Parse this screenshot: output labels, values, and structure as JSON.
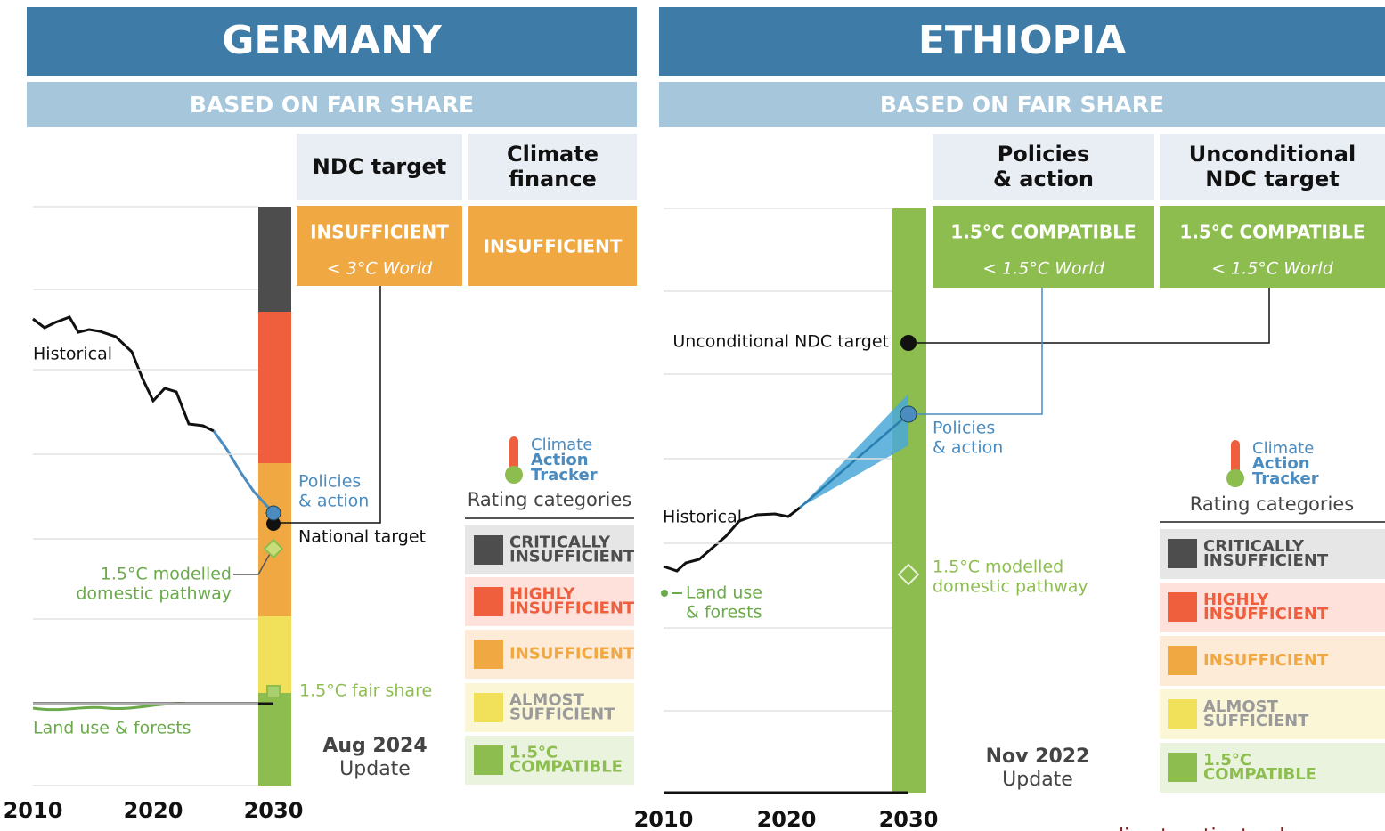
{
  "panels": [
    {
      "country": "GERMANY",
      "basis": "BASED ON FAIR SHARE",
      "columns": [
        {
          "header": [
            "NDC target"
          ],
          "rating": "INSUFFICIENT",
          "world": "< 3°C World"
        },
        {
          "header": [
            "Climate",
            "finance"
          ],
          "rating": "INSUFFICIENT"
        }
      ],
      "labels": {
        "historical": "Historical",
        "policies": [
          "Policies",
          "& action"
        ],
        "target": "National target",
        "pathway": [
          "1.5°C modelled",
          "domestic pathway"
        ],
        "fair_share": "1.5°C fair share",
        "land_use": [
          "Land use & forests"
        ]
      },
      "update": [
        "Aug 2024",
        "Update"
      ],
      "years": [
        "2010",
        "2020",
        "2030"
      ],
      "legend": {
        "logo": [
          "Climate",
          "Action",
          "Tracker"
        ],
        "title": "Rating categories",
        "categories": [
          [
            "CRITICALLY",
            "INSUFFICIENT"
          ],
          [
            "HIGHLY",
            "INSUFFICIENT"
          ],
          [
            "INSUFFICIENT"
          ],
          [
            "ALMOST",
            "SUFFICIENT"
          ],
          [
            "1.5°C",
            "COMPATIBLE"
          ]
        ]
      }
    },
    {
      "country": "ETHIOPIA",
      "basis": "BASED ON FAIR SHARE",
      "columns": [
        {
          "header": [
            "Policies",
            "& action"
          ],
          "rating": "1.5°C COMPATIBLE",
          "world": "< 1.5°C World"
        },
        {
          "header": [
            "Unconditional",
            "NDC target"
          ],
          "rating": "1.5°C COMPATIBLE",
          "world": "< 1.5°C World"
        }
      ],
      "labels": {
        "historical": "Historical",
        "policies": [
          "Policies",
          "& action"
        ],
        "target": "Unconditional NDC target",
        "pathway": [
          "1.5°C modelled",
          "domestic pathway"
        ],
        "land_use": [
          "Land use",
          "& forests"
        ]
      },
      "update": [
        "Nov 2022",
        "Update"
      ],
      "years": [
        "2010",
        "2020",
        "2030"
      ],
      "legend": {
        "logo": [
          "Climate",
          "Action",
          "Tracker"
        ],
        "title": "Rating categories",
        "categories": [
          [
            "CRITICALLY",
            "INSUFFICIENT"
          ],
          [
            "HIGHLY",
            "INSUFFICIENT"
          ],
          [
            "INSUFFICIENT"
          ],
          [
            "ALMOST",
            "SUFFICIENT"
          ],
          [
            "1.5°C",
            "COMPATIBLE"
          ]
        ]
      }
    }
  ],
  "footer": "www.climateactiontracker.org"
}
